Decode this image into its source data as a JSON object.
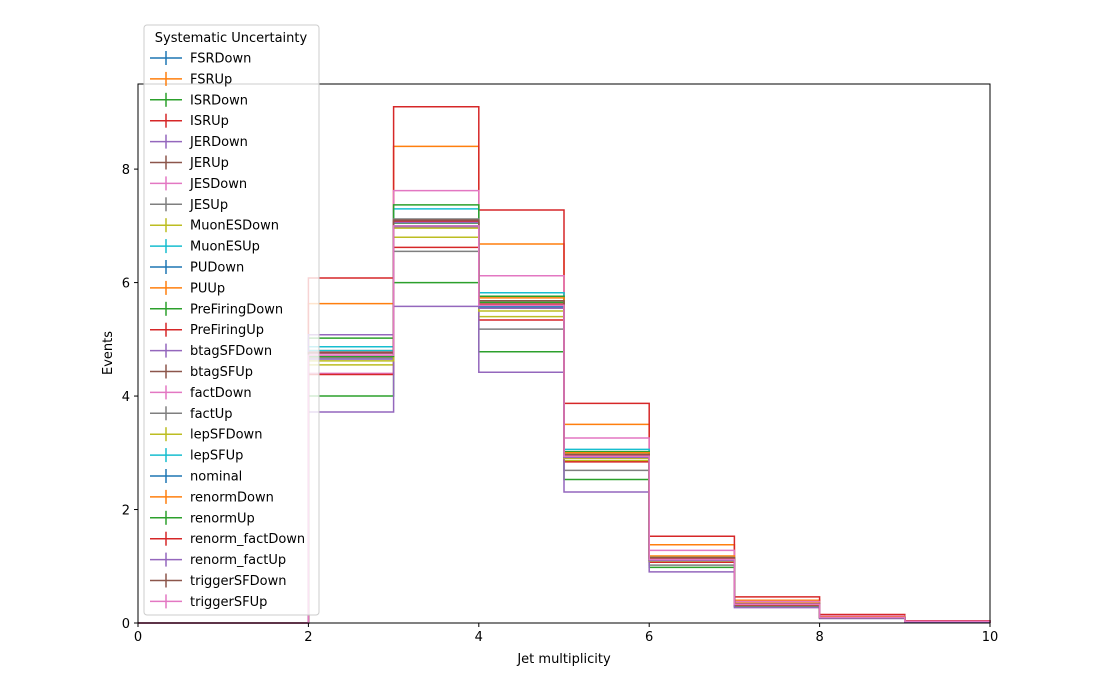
{
  "chart_data": {
    "type": "histogram-step",
    "title": "",
    "xlabel": "Jet multiplicity",
    "ylabel": "Events",
    "xlim": [
      0,
      10
    ],
    "ylim": [
      0,
      9.5
    ],
    "xticks": [
      0,
      2,
      4,
      6,
      8,
      10
    ],
    "yticks": [
      0,
      2,
      4,
      6,
      8
    ],
    "bin_edges": [
      0,
      1,
      2,
      3,
      4,
      5,
      6,
      7,
      8,
      9,
      10
    ],
    "legend": {
      "title": "Systematic Uncertainty",
      "placement": "upper-left"
    },
    "series": [
      {
        "name": "FSRDown",
        "color": "#1f77b4",
        "values": [
          0,
          0,
          4.7,
          6.97,
          5.55,
          2.92,
          1.1,
          0.32,
          0.1,
          0.03
        ]
      },
      {
        "name": "FSRUp",
        "color": "#ff7f0e",
        "values": [
          0,
          0,
          5.63,
          8.4,
          6.68,
          3.5,
          1.38,
          0.4,
          0.12,
          0.03
        ]
      },
      {
        "name": "ISRDown",
        "color": "#2ca02c",
        "values": [
          0,
          0,
          4.0,
          6.0,
          4.78,
          2.53,
          0.98,
          0.29,
          0.09,
          0.02
        ]
      },
      {
        "name": "ISRUp",
        "color": "#d62728",
        "values": [
          0,
          0,
          6.08,
          9.1,
          7.28,
          3.87,
          1.53,
          0.46,
          0.15,
          0.04
        ]
      },
      {
        "name": "JERDown",
        "color": "#9467bd",
        "values": [
          0,
          0,
          4.65,
          6.98,
          5.55,
          2.92,
          1.1,
          0.33,
          0.1,
          0.03
        ]
      },
      {
        "name": "JERUp",
        "color": "#8c564b",
        "values": [
          0,
          0,
          4.72,
          7.0,
          5.56,
          2.93,
          1.11,
          0.33,
          0.1,
          0.03
        ]
      },
      {
        "name": "JESDown",
        "color": "#e377c2",
        "values": [
          0,
          0,
          4.4,
          7.62,
          6.12,
          3.26,
          1.28,
          0.38,
          0.12,
          0.03
        ]
      },
      {
        "name": "JESUp",
        "color": "#7f7f7f",
        "values": [
          0,
          0,
          4.7,
          6.55,
          5.18,
          2.69,
          1.02,
          0.3,
          0.09,
          0.02
        ]
      },
      {
        "name": "MuonESDown",
        "color": "#bcbd22",
        "values": [
          0,
          0,
          4.55,
          6.8,
          5.4,
          2.86,
          1.08,
          0.32,
          0.1,
          0.03
        ]
      },
      {
        "name": "MuonESUp",
        "color": "#17becf",
        "values": [
          0,
          0,
          4.87,
          7.3,
          5.82,
          3.06,
          1.17,
          0.35,
          0.11,
          0.03
        ]
      },
      {
        "name": "PUDown",
        "color": "#1f77b4",
        "values": [
          0,
          0,
          4.68,
          7.0,
          5.57,
          2.93,
          1.11,
          0.33,
          0.1,
          0.03
        ]
      },
      {
        "name": "PUUp",
        "color": "#ff7f0e",
        "values": [
          0,
          0,
          4.72,
          7.05,
          5.6,
          2.95,
          1.12,
          0.33,
          0.1,
          0.03
        ]
      },
      {
        "name": "PreFiringDown",
        "color": "#2ca02c",
        "values": [
          0,
          0,
          5.02,
          7.37,
          5.76,
          3.02,
          1.14,
          0.34,
          0.1,
          0.03
        ]
      },
      {
        "name": "PreFiringUp",
        "color": "#d62728",
        "values": [
          0,
          0,
          4.38,
          6.62,
          5.34,
          2.84,
          1.07,
          0.32,
          0.1,
          0.03
        ]
      },
      {
        "name": "btagSFDown",
        "color": "#9467bd",
        "values": [
          0,
          0,
          3.72,
          5.58,
          4.42,
          2.31,
          0.9,
          0.27,
          0.08,
          0.02
        ]
      },
      {
        "name": "btagSFUp",
        "color": "#8c564b",
        "values": [
          0,
          0,
          4.8,
          7.08,
          5.6,
          2.94,
          1.12,
          0.33,
          0.1,
          0.03
        ]
      },
      {
        "name": "factDown",
        "color": "#e377c2",
        "values": [
          0,
          0,
          4.75,
          7.1,
          5.62,
          2.96,
          1.13,
          0.34,
          0.1,
          0.03
        ]
      },
      {
        "name": "factUp",
        "color": "#7f7f7f",
        "values": [
          0,
          0,
          4.68,
          7.12,
          5.55,
          2.92,
          1.1,
          0.33,
          0.1,
          0.03
        ]
      },
      {
        "name": "lepSFDown",
        "color": "#bcbd22",
        "values": [
          0,
          0,
          4.62,
          6.96,
          5.5,
          2.9,
          1.09,
          0.33,
          0.1,
          0.03
        ]
      },
      {
        "name": "lepSFUp",
        "color": "#17becf",
        "values": [
          0,
          0,
          4.8,
          7.05,
          5.62,
          2.96,
          1.13,
          0.34,
          0.1,
          0.03
        ]
      },
      {
        "name": "nominal",
        "color": "#1f77b4",
        "values": [
          0,
          0,
          4.72,
          7.0,
          5.57,
          2.93,
          1.11,
          0.33,
          0.1,
          0.03
        ]
      },
      {
        "name": "renormDown",
        "color": "#ff7f0e",
        "values": [
          0,
          0,
          4.7,
          7.07,
          5.73,
          3.0,
          1.18,
          0.35,
          0.11,
          0.03
        ]
      },
      {
        "name": "renormUp",
        "color": "#2ca02c",
        "values": [
          0,
          0,
          4.7,
          7.05,
          5.65,
          2.97,
          1.15,
          0.34,
          0.1,
          0.03
        ]
      },
      {
        "name": "renorm_factDown",
        "color": "#d62728",
        "values": [
          0,
          0,
          4.77,
          7.08,
          5.62,
          2.95,
          1.14,
          0.34,
          0.1,
          0.03
        ]
      },
      {
        "name": "renorm_factUp",
        "color": "#9467bd",
        "values": [
          0,
          0,
          5.08,
          7.06,
          5.55,
          2.92,
          1.1,
          0.33,
          0.1,
          0.03
        ]
      },
      {
        "name": "triggerSFDown",
        "color": "#8c564b",
        "values": [
          0,
          0,
          4.76,
          7.1,
          5.68,
          2.97,
          1.15,
          0.34,
          0.1,
          0.03
        ]
      },
      {
        "name": "triggerSFUp",
        "color": "#e377c2",
        "values": [
          0,
          0,
          4.72,
          7.0,
          5.6,
          2.94,
          1.12,
          0.33,
          0.1,
          0.03
        ]
      }
    ]
  }
}
